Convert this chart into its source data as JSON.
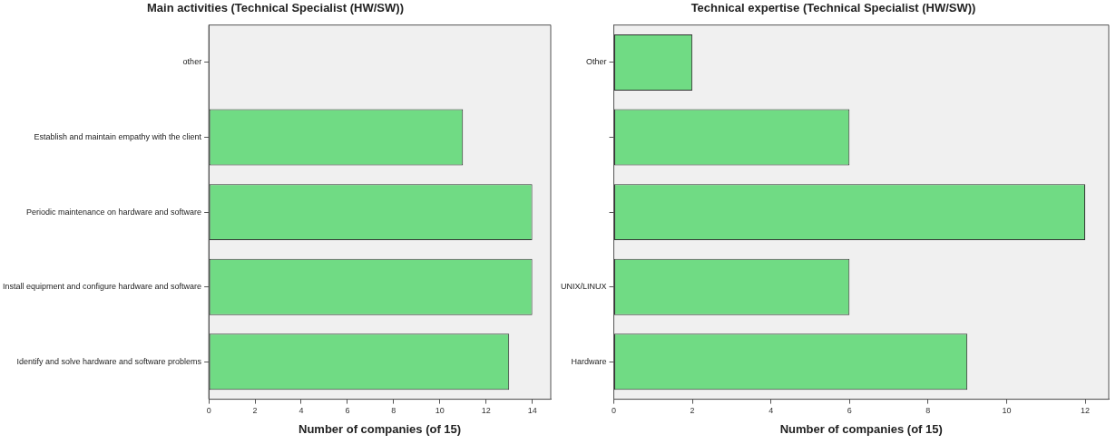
{
  "chart_data": [
    {
      "type": "bar",
      "orientation": "horizontal",
      "title": "Main activities (Technical Specialist (HW/SW))",
      "xlabel": "Number of companies (of 15)",
      "categories": [
        "other",
        "Establish and maintain empathy with the client",
        "Periodic maintenance on hardware and software",
        "Install equipment and configure hardware and software",
        "Identify and solve hardware and software problems"
      ],
      "values": [
        0,
        11,
        14,
        14,
        13
      ],
      "color": "#70db84",
      "xlim": [
        0,
        14.8
      ],
      "xticks": [
        0,
        2,
        4,
        6,
        8,
        10,
        12,
        14
      ],
      "grid": false,
      "legend": false
    },
    {
      "type": "bar",
      "orientation": "horizontal",
      "title": "Technical expertise (Technical Specialist (HW/SW))",
      "xlabel": "Number of companies (of 15)",
      "categories": [
        "Other",
        null,
        null,
        "UNIX/LINUX",
        "Hardware"
      ],
      "values": [
        2,
        6,
        12,
        6,
        9
      ],
      "color": "#70db84",
      "xlim": [
        0,
        12.6
      ],
      "xticks": [
        0,
        2,
        4,
        6,
        8,
        10,
        12
      ],
      "grid": false,
      "legend": false
    }
  ]
}
